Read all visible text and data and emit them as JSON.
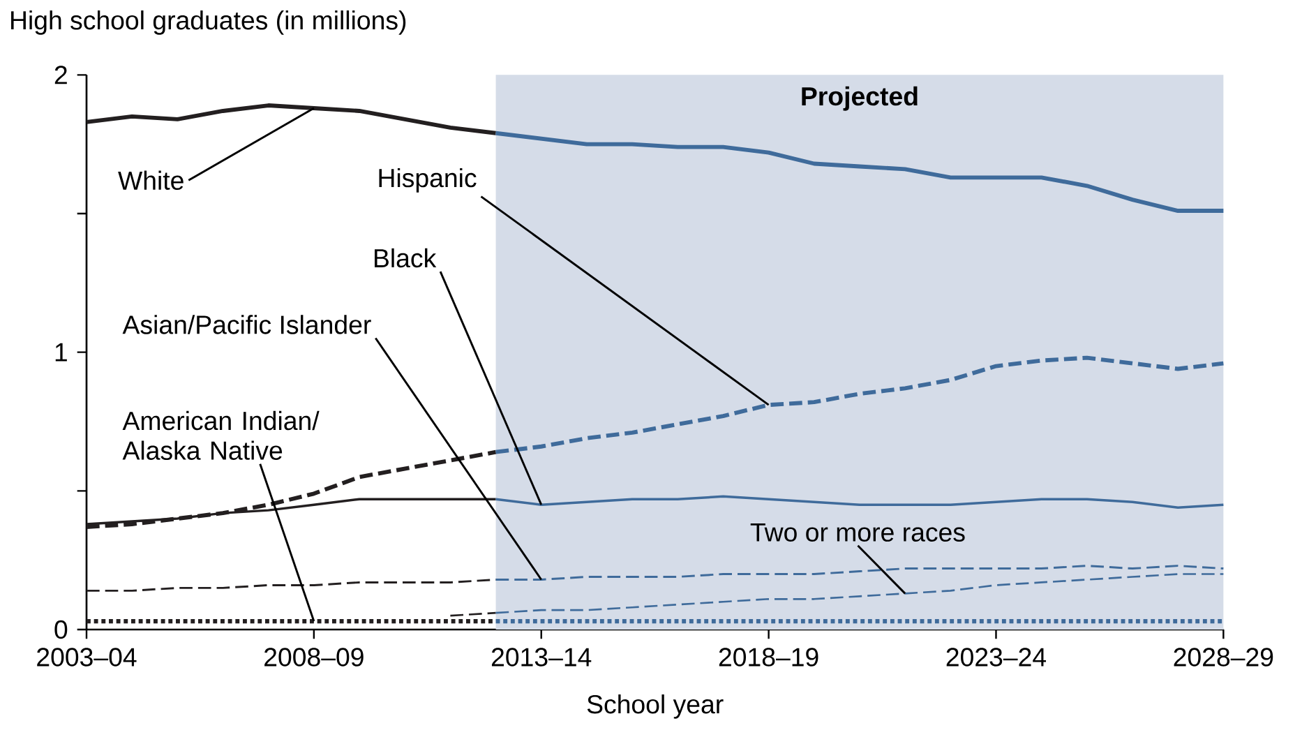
{
  "chart_data": {
    "type": "line",
    "ylabel": "High school graduates (in millions)",
    "xlabel": "School year",
    "categories": [
      "2003–04",
      null,
      null,
      null,
      null,
      "2008–09",
      null,
      null,
      null,
      null,
      "2013–14",
      null,
      null,
      null,
      null,
      "2018–19",
      null,
      null,
      null,
      null,
      "2023–24",
      null,
      null,
      null,
      null,
      "2028–29"
    ],
    "ylim": [
      0,
      2
    ],
    "yticks": [
      0,
      {
        "value": 0.5,
        "label": null
      },
      1,
      {
        "value": 1.5,
        "label": null
      },
      2
    ],
    "grid": false,
    "marker": "none",
    "series": [
      {
        "color": "#231f20",
        "line_style": "solid",
        "values": [
          1.83,
          1.85,
          1.84,
          1.87,
          1.89,
          1.88,
          1.87,
          1.84,
          1.81,
          1.79,
          null,
          null,
          null,
          null,
          null,
          null,
          null,
          null,
          null,
          null,
          null,
          null,
          null,
          null,
          null,
          null
        ]
      },
      {
        "color": "#3f6b9b",
        "line_style": "solid",
        "values": [
          null,
          null,
          null,
          null,
          null,
          null,
          null,
          null,
          null,
          1.79,
          1.77,
          1.75,
          1.75,
          1.74,
          1.74,
          1.72,
          1.68,
          1.67,
          1.66,
          1.63,
          1.63,
          1.63,
          1.6,
          1.55,
          1.51,
          1.51
        ]
      },
      {
        "color": "#231f20",
        "line_style": "dashed",
        "values": [
          0.37,
          0.38,
          0.4,
          0.42,
          0.45,
          0.49,
          0.55,
          0.58,
          0.61,
          0.64,
          null,
          null,
          null,
          null,
          null,
          null,
          null,
          null,
          null,
          null,
          null,
          null,
          null,
          null,
          null,
          null
        ]
      },
      {
        "color": "#3f6b9b",
        "line_style": "dashed",
        "values": [
          null,
          null,
          null,
          null,
          null,
          null,
          null,
          null,
          null,
          0.64,
          0.66,
          0.69,
          0.71,
          0.74,
          0.77,
          0.81,
          0.82,
          0.85,
          0.87,
          0.9,
          0.95,
          0.97,
          0.98,
          0.96,
          0.94,
          0.96
        ]
      },
      {
        "color": "#231f20",
        "line_style": "solid",
        "values": [
          0.38,
          0.39,
          0.4,
          0.42,
          0.43,
          0.45,
          0.47,
          0.47,
          0.47,
          0.47,
          null,
          null,
          null,
          null,
          null,
          null,
          null,
          null,
          null,
          null,
          null,
          null,
          null,
          null,
          null,
          null
        ]
      },
      {
        "color": "#3f6b9b",
        "line_style": "solid",
        "values": [
          null,
          null,
          null,
          null,
          null,
          null,
          null,
          null,
          null,
          0.47,
          0.45,
          0.46,
          0.47,
          0.47,
          0.48,
          0.47,
          0.46,
          0.45,
          0.45,
          0.45,
          0.46,
          0.47,
          0.47,
          0.46,
          0.44,
          0.45
        ]
      },
      {
        "color": "#231f20",
        "line_style": "dashed",
        "values": [
          0.14,
          0.14,
          0.15,
          0.15,
          0.16,
          0.16,
          0.17,
          0.17,
          0.17,
          0.18,
          null,
          null,
          null,
          null,
          null,
          null,
          null,
          null,
          null,
          null,
          null,
          null,
          null,
          null,
          null,
          null
        ]
      },
      {
        "color": "#3f6b9b",
        "line_style": "dashed",
        "values": [
          null,
          null,
          null,
          null,
          null,
          null,
          null,
          null,
          null,
          0.18,
          0.18,
          0.19,
          0.19,
          0.19,
          0.2,
          0.2,
          0.2,
          0.21,
          0.22,
          0.22,
          0.22,
          0.22,
          0.23,
          0.22,
          0.23,
          0.22
        ]
      },
      {
        "color": "#231f20",
        "line_style": "dotted",
        "values": [
          0.03,
          0.03,
          0.03,
          0.03,
          0.03,
          0.03,
          0.03,
          0.03,
          0.03,
          0.03,
          null,
          null,
          null,
          null,
          null,
          null,
          null,
          null,
          null,
          null,
          null,
          null,
          null,
          null,
          null,
          null
        ]
      },
      {
        "color": "#3f6b9b",
        "line_style": "dotted",
        "values": [
          null,
          null,
          null,
          null,
          null,
          null,
          null,
          null,
          null,
          0.03,
          0.03,
          0.03,
          0.03,
          0.03,
          0.03,
          0.03,
          0.03,
          0.03,
          0.03,
          0.03,
          0.03,
          0.03,
          0.03,
          0.03,
          0.03,
          0.03
        ]
      },
      {
        "color": "#231f20",
        "line_style": "dashed",
        "values": [
          null,
          null,
          null,
          null,
          null,
          null,
          null,
          null,
          0.05,
          0.06,
          null,
          null,
          null,
          null,
          null,
          null,
          null,
          null,
          null,
          null,
          null,
          null,
          null,
          null,
          null,
          null
        ]
      },
      {
        "color": "#3f6b9b",
        "line_style": "dashed",
        "values": [
          null,
          null,
          null,
          null,
          null,
          null,
          null,
          null,
          null,
          0.06,
          0.07,
          0.07,
          0.08,
          0.09,
          0.1,
          0.11,
          0.11,
          0.12,
          0.13,
          0.14,
          0.16,
          0.17,
          0.18,
          0.19,
          0.2,
          0.2
        ]
      }
    ],
    "annotations": [
      "Projected",
      {
        "text": "White",
        "x": "2008–09",
        "y": 1.88
      },
      {
        "text": "Hispanic",
        "x": "2018–19",
        "y": 0.81
      },
      {
        "text": "Black",
        "x": "2013–14",
        "y": 0.45
      },
      {
        "text": "Asian/Pacific Islander",
        "x": "2013–14",
        "y": 0.18
      },
      {
        "text": "American Indian/ Alaska Native",
        "x": "2008–09",
        "y": 0.03
      },
      {
        "text": "Two or more races",
        "y": 0.13
      }
    ]
  }
}
